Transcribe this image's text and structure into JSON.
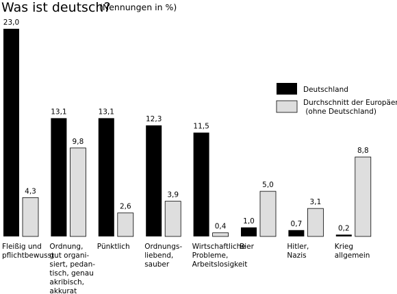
{
  "chart_data": {
    "type": "bar",
    "title": "Was ist deutsch?",
    "subtitle": "(Nennungen in %)",
    "categories": [
      [
        "Fleißig und",
        "pflichtbewusst"
      ],
      [
        "Ordnung,",
        "gut organi-",
        "siert, pedan-",
        "tisch, genau",
        "akribisch,",
        "akkurat"
      ],
      [
        "Pünktlich"
      ],
      [
        "Ordnungs-",
        "liebend,",
        "sauber"
      ],
      [
        "Wirtschaftliche",
        "Probleme,",
        "Arbeitslosigkeit"
      ],
      [
        "Bier"
      ],
      [
        "Hitler,",
        "Nazis"
      ],
      [
        "Krieg",
        "allgemein"
      ]
    ],
    "series": [
      {
        "name": "Deutschland",
        "color": "#000000",
        "values": [
          23.0,
          13.1,
          13.1,
          12.3,
          11.5,
          1.0,
          0.7,
          0.2
        ],
        "labels": [
          "23,0",
          "13,1",
          "13,1",
          "12,3",
          "11,5",
          "1,0",
          "0,7",
          "0,2"
        ]
      },
      {
        "name": "Durchschnitt der Europäer (ohne Deutschland)",
        "color": "#dedede",
        "legend_lines": [
          "Durchschnitt der Europäer",
          " (ohne Deutschland)"
        ],
        "values": [
          4.3,
          9.8,
          2.6,
          3.9,
          0.4,
          5.0,
          3.1,
          8.8
        ],
        "labels": [
          "4,3",
          "9,8",
          "2,6",
          "3,9",
          "0,4",
          "5,0",
          "3,1",
          "8,8"
        ]
      }
    ],
    "ylim": [
      0,
      23.0
    ],
    "grid": false,
    "legend_position": "right"
  }
}
